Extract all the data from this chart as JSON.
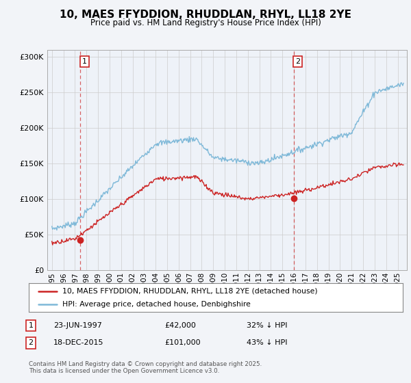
{
  "title": "10, MAES FFYDDION, RHUDDLAN, RHYL, LL18 2YE",
  "subtitle": "Price paid vs. HM Land Registry's House Price Index (HPI)",
  "ylim": [
    0,
    310000
  ],
  "yticks": [
    0,
    50000,
    100000,
    150000,
    200000,
    250000,
    300000
  ],
  "ytick_labels": [
    "£0",
    "£50K",
    "£100K",
    "£150K",
    "£200K",
    "£250K",
    "£300K"
  ],
  "sale1_date": 1997.48,
  "sale1_price": 42000,
  "sale1_label": "1",
  "sale2_date": 2015.97,
  "sale2_price": 101000,
  "sale2_label": "2",
  "hpi_color": "#7db8d8",
  "price_color": "#cc2222",
  "background_color": "#f2f4f8",
  "plot_bg_color": "#eef2f8",
  "legend_label1": "10, MAES FFYDDION, RHUDDLAN, RHYL, LL18 2YE (detached house)",
  "legend_label2": "HPI: Average price, detached house, Denbighshire",
  "note1_date": "23-JUN-1997",
  "note1_price": "£42,000",
  "note1_pct": "32% ↓ HPI",
  "note2_date": "18-DEC-2015",
  "note2_price": "£101,000",
  "note2_pct": "43% ↓ HPI",
  "copyright": "Contains HM Land Registry data © Crown copyright and database right 2025.\nThis data is licensed under the Open Government Licence v3.0."
}
